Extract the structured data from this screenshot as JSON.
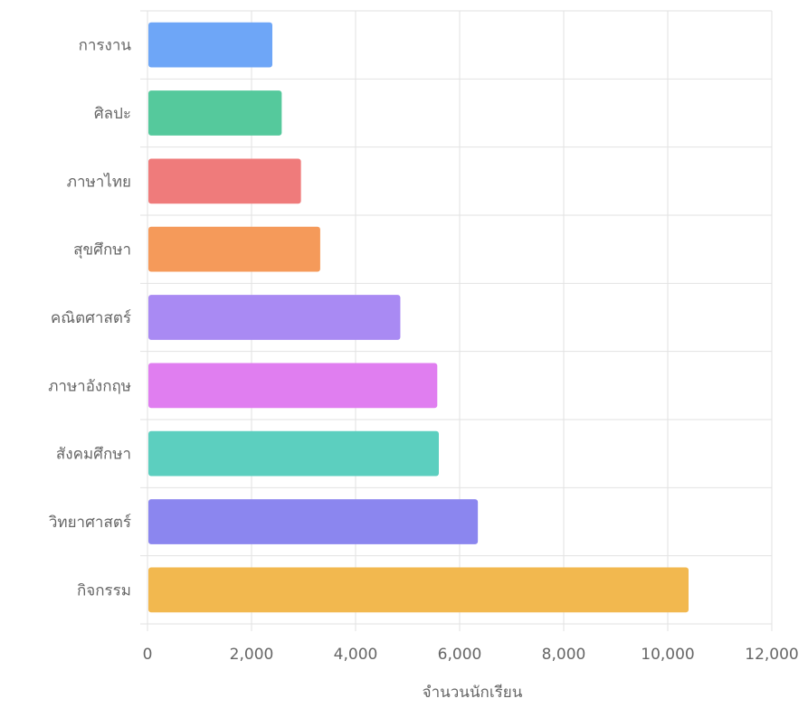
{
  "chart_data": {
    "type": "bar",
    "orientation": "horizontal",
    "categories": [
      "การงาน",
      "ศิลปะ",
      "ภาษาไทย",
      "สุขศึกษา",
      "คณิตศาสตร์",
      "ภาษาอังกฤษ",
      "สังคมศึกษา",
      "วิทยาศาสตร์",
      "กิจกรรม"
    ],
    "values": [
      2400,
      2580,
      2950,
      3320,
      4860,
      5570,
      5600,
      6350,
      10400
    ],
    "colors": [
      "#6ea6f7",
      "#55c99c",
      "#ef7b7b",
      "#f59a5a",
      "#a98af3",
      "#e07ef0",
      "#5ccfbf",
      "#8b86ef",
      "#f2b84f"
    ],
    "xlabel": "จำนวนนักเรียน",
    "ylabel": "",
    "title": "",
    "xlim": [
      0,
      12000
    ],
    "xticks": [
      0,
      2000,
      4000,
      6000,
      8000,
      10000,
      12000
    ],
    "xtick_labels": [
      "0",
      "2,000",
      "4,000",
      "6,000",
      "8,000",
      "10,000",
      "12,000"
    ],
    "grid": true,
    "legend": "none"
  }
}
